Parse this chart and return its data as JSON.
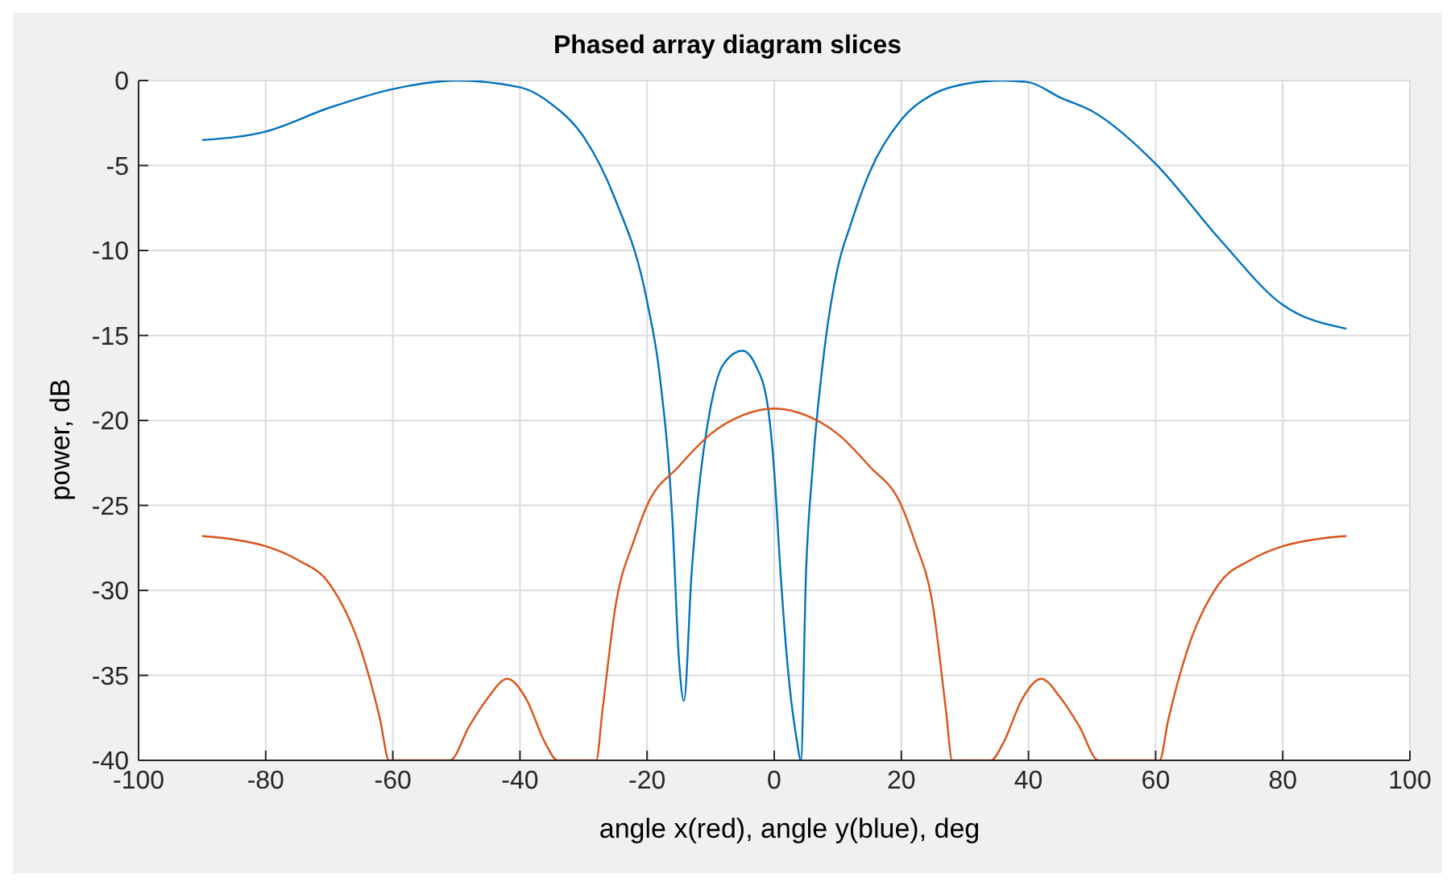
{
  "chart_data": {
    "type": "line",
    "title": "Phased array diagram slices",
    "xlabel": "angle x(red), angle y(blue), deg",
    "ylabel": "power, dB",
    "xlim": [
      -100,
      100
    ],
    "xticks": [
      -100,
      -80,
      -60,
      -40,
      -20,
      0,
      20,
      40,
      60,
      80,
      100
    ],
    "ylim": [
      -40,
      0
    ],
    "yticks": [
      -40,
      -35,
      -30,
      -25,
      -20,
      -15,
      -10,
      -5,
      0
    ],
    "grid": true,
    "marker": "none",
    "line_style": "solid",
    "series": [
      {
        "color": "#0072bd",
        "x": [
          -90,
          -80,
          -70,
          -60,
          -50,
          -40,
          -35,
          -30,
          -25,
          -20,
          -18,
          -16,
          -15,
          -14.2,
          -13,
          -12,
          -10,
          -8,
          -5,
          -3,
          -1,
          0,
          1,
          2,
          3.5,
          4.2,
          5,
          6,
          8,
          10,
          12,
          15,
          20,
          25,
          30,
          36,
          40,
          45,
          50,
          60,
          70,
          80,
          90
        ],
        "values": [
          -3.5,
          -3.0,
          -1.6,
          -0.5,
          0,
          -0.4,
          -1.4,
          -3.3,
          -7,
          -13,
          -17.4,
          -26,
          -34,
          -36.5,
          -29,
          -24.6,
          -19.2,
          -16.7,
          -15.9,
          -16.7,
          -19.2,
          -23,
          -29,
          -34,
          -38.7,
          -40,
          -29,
          -23,
          -15.5,
          -11,
          -8.5,
          -5.4,
          -2.3,
          -0.8,
          -0.2,
          0,
          -0.1,
          -1,
          -1.8,
          -4.9,
          -9.3,
          -13.2,
          -14.6
        ]
      },
      {
        "color": "#d95319",
        "x": [
          -90,
          -85,
          -80,
          -75,
          -70,
          -65,
          -62,
          -60.6,
          -51,
          -48,
          -45,
          -42,
          -39,
          -36,
          -34.1,
          -28,
          -27,
          -25,
          -22,
          -20,
          -15,
          -10,
          -5,
          0,
          5,
          10,
          15,
          20,
          22,
          25,
          27,
          28,
          34.1,
          36,
          39,
          42,
          45,
          48,
          51,
          60.6,
          62,
          65,
          70,
          75,
          80,
          85,
          90
        ],
        "values": [
          -26.8,
          -27,
          -27.4,
          -28.2,
          -29.6,
          -33.5,
          -37.6,
          -40,
          -40,
          -38,
          -36.3,
          -35.2,
          -36.4,
          -39,
          -40,
          -40,
          -37,
          -31,
          -27,
          -25,
          -22.7,
          -20.8,
          -19.7,
          -19.3,
          -19.7,
          -20.8,
          -22.7,
          -25,
          -27,
          -31,
          -37,
          -40,
          -40,
          -39,
          -36.4,
          -35.2,
          -36.3,
          -38,
          -40,
          -40,
          -37.6,
          -33.5,
          -29.6,
          -28.2,
          -27.4,
          -27,
          -26.8
        ]
      }
    ]
  }
}
